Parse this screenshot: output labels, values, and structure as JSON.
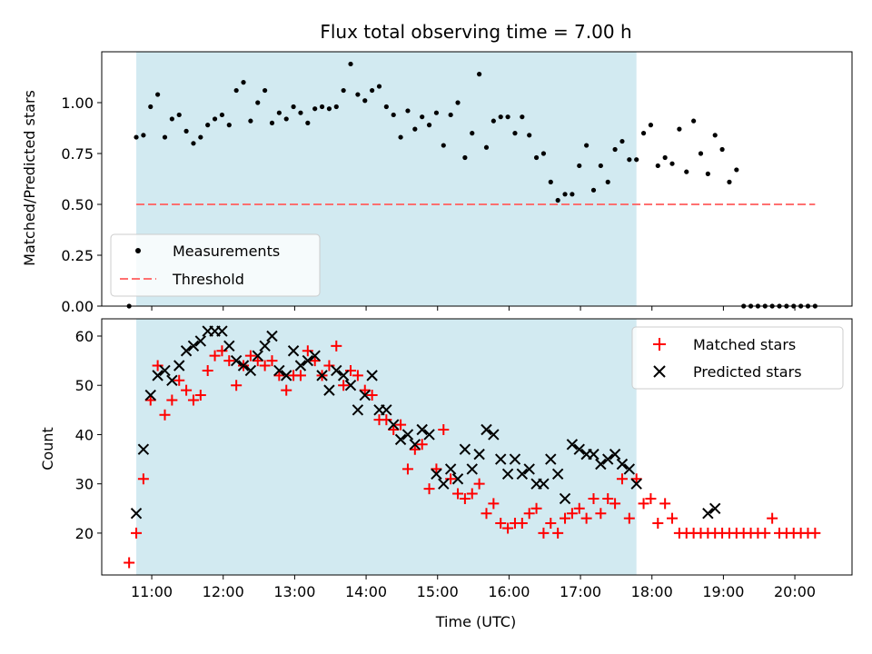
{
  "chart_data": [
    {
      "type": "scatter",
      "title": "Flux total observing time = 7.00 h",
      "xlabel": "",
      "ylabel": "Matched/Predicted stars",
      "xlim": [
        "10:18",
        "20:48"
      ],
      "ylim": [
        0,
        1.25
      ],
      "yticks": [
        "0.00",
        "0.25",
        "0.50",
        "0.75",
        "1.00"
      ],
      "shaded_region": [
        "10:47",
        "17:47"
      ],
      "legend_position": "lower-left",
      "series": [
        {
          "name": "Measurements",
          "marker": "dot",
          "color": "#000000",
          "x": [
            "10:41",
            "10:47",
            "10:53",
            "10:59",
            "11:05",
            "11:11",
            "11:17",
            "11:23",
            "11:29",
            "11:35",
            "11:41",
            "11:47",
            "11:53",
            "11:59",
            "12:05",
            "12:11",
            "12:17",
            "12:23",
            "12:29",
            "12:35",
            "12:41",
            "12:47",
            "12:53",
            "12:59",
            "13:05",
            "13:11",
            "13:17",
            "13:23",
            "13:29",
            "13:35",
            "13:41",
            "13:47",
            "13:53",
            "13:59",
            "14:05",
            "14:11",
            "14:17",
            "14:23",
            "14:29",
            "14:35",
            "14:41",
            "14:47",
            "14:53",
            "14:59",
            "15:05",
            "15:11",
            "15:17",
            "15:23",
            "15:29",
            "15:35",
            "15:41",
            "15:47",
            "15:53",
            "15:59",
            "16:05",
            "16:11",
            "16:17",
            "16:23",
            "16:29",
            "16:35",
            "16:41",
            "16:47",
            "16:53",
            "16:59",
            "17:05",
            "17:11",
            "17:17",
            "17:23",
            "17:29",
            "17:35",
            "17:41",
            "17:47",
            "17:53",
            "17:59",
            "18:05",
            "18:11",
            "18:17",
            "18:23",
            "18:29",
            "18:35",
            "18:41",
            "18:47",
            "18:53",
            "18:59",
            "19:05",
            "19:11",
            "19:17",
            "19:23",
            "19:29",
            "19:35",
            "19:41",
            "19:47",
            "19:53",
            "19:59",
            "20:05",
            "20:11",
            "20:17"
          ],
          "y": [
            0.0,
            0.83,
            0.84,
            0.98,
            1.04,
            0.83,
            0.92,
            0.94,
            0.86,
            0.8,
            0.83,
            0.89,
            0.92,
            0.94,
            0.89,
            1.06,
            1.1,
            0.91,
            1.0,
            1.06,
            0.9,
            0.95,
            0.92,
            0.98,
            0.95,
            0.9,
            0.97,
            0.98,
            0.97,
            0.98,
            1.06,
            1.19,
            1.04,
            1.01,
            1.06,
            1.08,
            0.98,
            0.94,
            0.83,
            0.96,
            0.87,
            0.93,
            0.89,
            0.95,
            0.79,
            0.94,
            1.0,
            0.73,
            0.85,
            1.14,
            0.78,
            0.91,
            0.93,
            0.93,
            0.85,
            0.93,
            0.84,
            0.73,
            0.75,
            0.61,
            0.52,
            0.55,
            0.55,
            0.69,
            0.79,
            0.57,
            0.69,
            0.61,
            0.77,
            0.81,
            0.72,
            0.72,
            0.85,
            0.89,
            0.69,
            0.73,
            0.7,
            0.87,
            0.66,
            0.91,
            0.75,
            0.65,
            0.84,
            0.77,
            0.61,
            0.67,
            0.0,
            0.0,
            0.0,
            0.0,
            0.0,
            0.0,
            0.0,
            0.0,
            0.0,
            0.0,
            0.0
          ]
        },
        {
          "name": "Threshold",
          "marker": "dashed-line",
          "color": "#ff7070",
          "x": [
            "10:47",
            "20:17"
          ],
          "y": [
            0.5,
            0.5
          ]
        }
      ]
    },
    {
      "type": "scatter",
      "title": "",
      "xlabel": "Time (UTC)",
      "ylabel": "Count",
      "xlim": [
        "10:18",
        "20:48"
      ],
      "ylim": [
        11.5,
        63.5
      ],
      "yticks": [
        "20",
        "30",
        "40",
        "50",
        "60"
      ],
      "xticks": [
        "11:00",
        "12:00",
        "13:00",
        "14:00",
        "15:00",
        "16:00",
        "17:00",
        "18:00",
        "19:00",
        "20:00"
      ],
      "shaded_region": [
        "10:47",
        "17:47"
      ],
      "legend_position": "upper-right",
      "series": [
        {
          "name": "Matched stars",
          "marker": "plus",
          "color": "#ff0000",
          "x": [
            "10:41",
            "10:47",
            "10:53",
            "10:59",
            "11:05",
            "11:11",
            "11:17",
            "11:23",
            "11:29",
            "11:35",
            "11:41",
            "11:47",
            "11:53",
            "11:59",
            "12:05",
            "12:11",
            "12:17",
            "12:23",
            "12:29",
            "12:35",
            "12:41",
            "12:47",
            "12:53",
            "12:59",
            "13:05",
            "13:11",
            "13:17",
            "13:23",
            "13:29",
            "13:35",
            "13:41",
            "13:47",
            "13:53",
            "13:59",
            "14:05",
            "14:11",
            "14:17",
            "14:23",
            "14:29",
            "14:35",
            "14:41",
            "14:47",
            "14:53",
            "14:59",
            "15:05",
            "15:11",
            "15:17",
            "15:23",
            "15:29",
            "15:35",
            "15:41",
            "15:47",
            "15:53",
            "15:59",
            "16:05",
            "16:11",
            "16:17",
            "16:23",
            "16:29",
            "16:35",
            "16:41",
            "16:47",
            "16:53",
            "16:59",
            "17:05",
            "17:11",
            "17:17",
            "17:23",
            "17:29",
            "17:35",
            "17:41",
            "17:47",
            "17:53",
            "17:59",
            "18:05",
            "18:11",
            "18:17",
            "18:23",
            "18:29",
            "18:35",
            "18:41",
            "18:47",
            "18:53",
            "18:59",
            "19:05",
            "19:11",
            "19:17",
            "19:23",
            "19:29",
            "19:35",
            "19:41",
            "19:47",
            "19:53",
            "19:59",
            "20:05",
            "20:11",
            "20:17"
          ],
          "y": [
            14,
            20,
            31,
            47,
            54,
            44,
            47,
            51,
            49,
            47,
            48,
            53,
            56,
            57,
            55,
            50,
            54,
            56,
            55,
            54,
            55,
            52,
            49,
            52,
            52,
            57,
            55,
            52,
            54,
            58,
            50,
            53,
            52,
            49,
            48,
            43,
            43,
            41,
            42,
            33,
            37,
            38,
            29,
            33,
            41,
            31,
            28,
            27,
            28,
            30,
            24,
            26,
            22,
            21,
            22,
            22,
            24,
            25,
            20,
            22,
            20,
            23,
            24,
            25,
            23,
            27,
            24,
            27,
            26,
            31,
            23,
            31,
            26,
            27,
            22,
            26,
            23,
            20,
            20,
            20,
            20,
            20,
            20,
            20,
            20,
            20,
            20,
            20,
            20,
            20,
            23,
            20,
            20,
            20,
            20,
            20,
            20
          ]
        },
        {
          "name": "Predicted stars",
          "marker": "x",
          "color": "#000000",
          "x": [
            "10:47",
            "10:53",
            "10:59",
            "11:05",
            "11:11",
            "11:17",
            "11:23",
            "11:29",
            "11:35",
            "11:41",
            "11:47",
            "11:53",
            "11:59",
            "12:05",
            "12:11",
            "12:17",
            "12:23",
            "12:29",
            "12:35",
            "12:41",
            "12:47",
            "12:53",
            "12:59",
            "13:05",
            "13:11",
            "13:17",
            "13:23",
            "13:29",
            "13:35",
            "13:41",
            "13:47",
            "13:53",
            "13:59",
            "14:05",
            "14:11",
            "14:17",
            "14:23",
            "14:29",
            "14:35",
            "14:41",
            "14:47",
            "14:53",
            "14:59",
            "15:05",
            "15:11",
            "15:17",
            "15:23",
            "15:29",
            "15:35",
            "15:41",
            "15:47",
            "15:53",
            "15:59",
            "16:05",
            "16:11",
            "16:17",
            "16:23",
            "16:29",
            "16:35",
            "16:41",
            "16:47",
            "16:53",
            "16:59",
            "17:05",
            "17:11",
            "17:17",
            "17:23",
            "17:29",
            "17:35",
            "17:41",
            "17:47",
            "18:47",
            "18:53"
          ],
          "y": [
            24,
            37,
            48,
            52,
            53,
            51,
            54,
            57,
            58,
            59,
            61,
            61,
            61,
            58,
            55,
            54,
            53,
            56,
            58,
            60,
            53,
            52,
            57,
            54,
            55,
            56,
            52,
            49,
            53,
            52,
            50,
            45,
            48,
            52,
            45,
            45,
            42,
            39,
            40,
            38,
            41,
            40,
            32,
            30,
            33,
            31,
            37,
            33,
            36,
            41,
            40,
            35,
            32,
            35,
            32,
            33,
            30,
            30,
            35,
            32,
            27,
            38,
            37,
            36,
            36,
            34,
            35,
            36,
            34,
            33,
            30,
            24,
            25
          ]
        }
      ]
    }
  ]
}
